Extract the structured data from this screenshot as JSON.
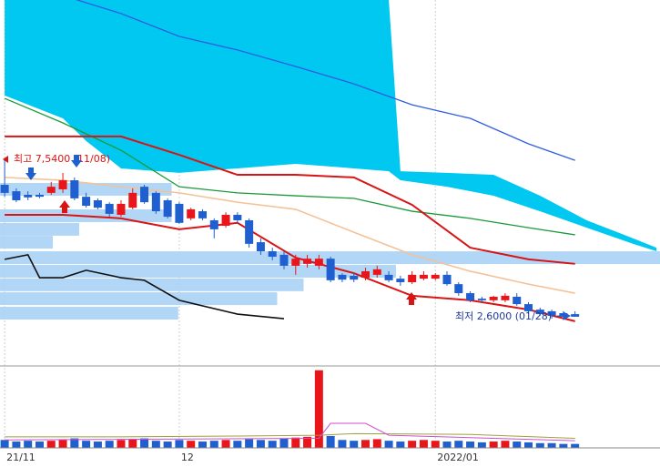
{
  "chart_data": {
    "type": "candlestick",
    "xlim": [
      -0.4,
      56.3
    ],
    "ylim": [
      1.19,
      12.48
    ],
    "xticks": [
      {
        "value": 0,
        "label": "21/11"
      },
      {
        "value": 15,
        "label": "12"
      },
      {
        "value": 37,
        "label": "2022/01"
      }
    ],
    "up_color": "#e8161b",
    "down_color": "#1f5fcf",
    "open": [
      6.75,
      6.55,
      6.44,
      6.44,
      6.5,
      6.61,
      6.89,
      6.38,
      6.27,
      6.16,
      5.82,
      6.04,
      6.69,
      6.5,
      6.27,
      6.16,
      5.71,
      5.93,
      5.65,
      5.48,
      5.82,
      5.65,
      4.97,
      4.69,
      4.58,
      4.24,
      4.3,
      4.24,
      4.46,
      3.96,
      3.93,
      3.87,
      3.96,
      3.96,
      3.84,
      3.73,
      3.84,
      3.84,
      3.96,
      3.67,
      3.39,
      3.22,
      3.17,
      3.17,
      3.28,
      3.05,
      2.88,
      2.83,
      2.77,
      2.74
    ],
    "high": [
      7.54,
      6.64,
      6.55,
      6.5,
      6.84,
      7.12,
      6.98,
      6.5,
      6.33,
      6.21,
      6.27,
      6.64,
      6.75,
      6.55,
      6.33,
      6.21,
      6.04,
      5.99,
      5.71,
      5.9,
      5.9,
      5.71,
      5.09,
      4.8,
      4.69,
      4.58,
      4.58,
      4.58,
      4.52,
      4.01,
      4.01,
      4.18,
      4.24,
      4.07,
      3.93,
      4.07,
      4.07,
      4.01,
      4.07,
      3.73,
      3.45,
      3.28,
      3.31,
      3.39,
      3.39,
      3.11,
      2.94,
      2.88,
      2.83,
      2.83
    ],
    "low": [
      6.38,
      6.21,
      6.27,
      6.33,
      6.44,
      6.5,
      6.27,
      6.04,
      5.99,
      5.76,
      5.76,
      5.99,
      6.16,
      5.85,
      5.71,
      5.54,
      5.65,
      5.65,
      5.09,
      5.42,
      5.54,
      4.8,
      4.58,
      4.41,
      4.13,
      3.96,
      4.18,
      4.13,
      3.73,
      3.73,
      3.73,
      3.79,
      3.87,
      3.73,
      3.62,
      3.67,
      3.79,
      3.79,
      3.62,
      3.31,
      3.11,
      3.11,
      3.11,
      3.11,
      3.0,
      2.74,
      2.69,
      2.6,
      2.66,
      2.66
    ],
    "close": [
      6.5,
      6.27,
      6.36,
      6.38,
      6.69,
      6.89,
      6.33,
      6.1,
      6.04,
      5.85,
      6.16,
      6.5,
      6.21,
      5.93,
      5.76,
      5.57,
      5.99,
      5.71,
      5.37,
      5.82,
      5.65,
      4.92,
      4.69,
      4.52,
      4.24,
      4.46,
      4.46,
      4.46,
      3.79,
      3.81,
      3.81,
      4.07,
      4.13,
      3.79,
      3.73,
      3.96,
      3.96,
      3.96,
      3.67,
      3.39,
      3.17,
      3.17,
      3.28,
      3.31,
      3.05,
      2.83,
      2.74,
      2.69,
      2.66,
      2.66
    ],
    "cloud": {
      "color": "#00c8f0",
      "x": [
        0,
        5,
        7,
        10,
        15,
        20,
        25,
        30,
        33,
        34,
        38,
        42,
        46,
        50,
        54,
        56
      ],
      "upper": [
        12.48,
        12.48,
        12.48,
        12.48,
        12.48,
        12.48,
        12.48,
        12.48,
        12.48,
        7.17,
        7.12,
        7.06,
        6.41,
        5.65,
        5.09,
        4.8
      ],
      "lower": [
        9.52,
        8.81,
        8.11,
        7.26,
        7.12,
        7.26,
        7.4,
        7.26,
        7.17,
        6.89,
        6.69,
        6.41,
        5.93,
        5.42,
        4.92,
        4.69
      ]
    },
    "profile": {
      "color": "#a9d2f5",
      "xlim": [
        0,
        100
      ],
      "prices": [
        6.61,
        5.79,
        5.37,
        4.97,
        4.49,
        4.07,
        3.65,
        3.22,
        2.77
      ],
      "lengths": [
        26,
        26,
        12,
        8,
        100,
        60,
        46,
        42,
        27
      ]
    },
    "lines": [
      {
        "color": "#2f5ee0",
        "width": 1.3,
        "x": [
          5,
          10,
          15,
          20,
          25,
          30,
          35,
          40,
          45,
          49
        ],
        "values": [
          12.62,
          12.06,
          11.35,
          10.93,
          10.42,
          9.88,
          9.23,
          8.81,
          8.02,
          7.51
        ]
      },
      {
        "color": "#1a9a3a",
        "width": 1.3,
        "x": [
          0,
          5,
          10,
          15,
          20,
          25,
          30,
          35,
          40,
          45,
          49
        ],
        "values": [
          9.43,
          8.67,
          7.82,
          6.69,
          6.5,
          6.41,
          6.33,
          5.93,
          5.71,
          5.42,
          5.2
        ]
      },
      {
        "color": "#f5c197",
        "width": 1.6,
        "x": [
          0,
          5,
          10,
          15,
          20,
          25,
          30,
          35,
          40,
          45,
          49
        ],
        "values": [
          6.98,
          6.89,
          6.69,
          6.5,
          6.21,
          5.99,
          5.28,
          4.58,
          4.07,
          3.67,
          3.39
        ]
      },
      {
        "color": "#d81414",
        "width": 2,
        "x": [
          0,
          5,
          10,
          15,
          20,
          25,
          30,
          35,
          40,
          45,
          49
        ],
        "values": [
          8.25,
          8.25,
          8.25,
          7.68,
          7.06,
          7.06,
          6.98,
          6.13,
          4.8,
          4.44,
          4.3
        ]
      },
      {
        "color": "#d81414",
        "width": 2,
        "x": [
          0,
          5,
          10,
          15,
          20,
          25,
          30,
          35,
          40,
          45,
          49
        ],
        "values": [
          5.82,
          5.82,
          5.71,
          5.37,
          5.57,
          4.49,
          4.01,
          3.31,
          3.17,
          2.88,
          2.52
        ]
      },
      {
        "color": "#111111",
        "width": 1.6,
        "x": [
          0,
          2,
          3,
          5,
          7,
          10,
          12,
          15,
          20,
          24
        ],
        "values": [
          4.44,
          4.58,
          3.87,
          3.87,
          4.1,
          3.87,
          3.79,
          3.17,
          2.74,
          2.6
        ]
      }
    ],
    "volume": {
      "vlim": [
        0,
        100
      ],
      "values": [
        10,
        8,
        9,
        8,
        9,
        10,
        12,
        9,
        8,
        9,
        10,
        11,
        12,
        9,
        8,
        10,
        9,
        8,
        9,
        10,
        9,
        11,
        10,
        9,
        12,
        13,
        14,
        98,
        15,
        10,
        9,
        10,
        11,
        9,
        8,
        9,
        10,
        9,
        8,
        9,
        8,
        7,
        8,
        9,
        8,
        7,
        6,
        6,
        5,
        5
      ],
      "lines": [
        {
          "color": "#a0a040",
          "x": [
            0,
            10,
            20,
            27,
            30,
            40,
            49
          ],
          "values": [
            14,
            14,
            15,
            16,
            18,
            17,
            12
          ]
        },
        {
          "color": "#d04ed0",
          "x": [
            0,
            27,
            28,
            31,
            33,
            49
          ],
          "values": [
            10,
            12,
            31,
            31,
            16,
            9
          ]
        }
      ]
    },
    "annotations": [
      "최고 7,5400 (11/08)",
      "최저 2,6000 (01/28)"
    ]
  }
}
